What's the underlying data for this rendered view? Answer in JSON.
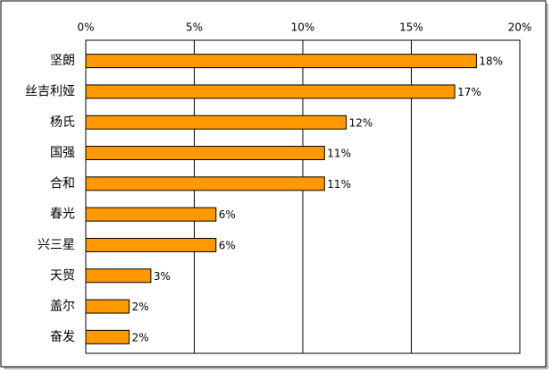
{
  "chart_data": {
    "type": "bar",
    "orientation": "horizontal",
    "categories": [
      "坚朗",
      "丝吉利娅",
      "杨氏",
      "国强",
      "合和",
      "春光",
      "兴三星",
      "天贸",
      "盖尔",
      "奋发"
    ],
    "values": [
      18,
      17,
      12,
      11,
      11,
      6,
      6,
      3,
      2,
      2
    ],
    "value_labels": [
      "18%",
      "17%",
      "12%",
      "11%",
      "11%",
      "6%",
      "6%",
      "3%",
      "2%",
      "2%"
    ],
    "color": "#ff9900",
    "xlim": [
      0,
      20
    ],
    "xticks": [
      {
        "value": 0,
        "label": "0%"
      },
      {
        "value": 5,
        "label": "5%"
      },
      {
        "value": 10,
        "label": "10%"
      },
      {
        "value": 15,
        "label": "15%"
      },
      {
        "value": 20,
        "label": "20%"
      }
    ],
    "grid": true
  }
}
